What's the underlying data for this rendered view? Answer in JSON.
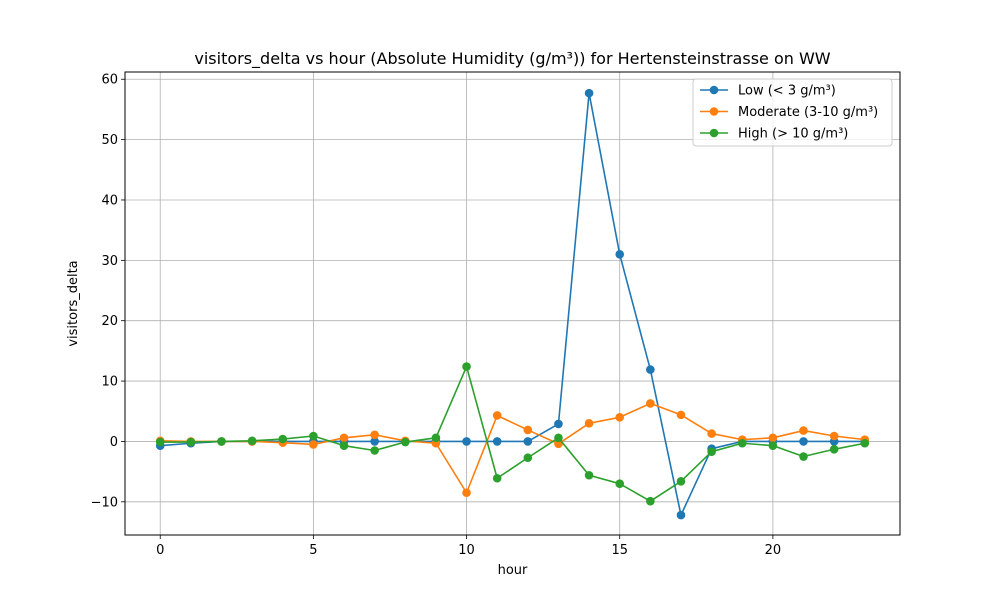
{
  "chart_data": {
    "type": "line",
    "title": "visitors_delta vs hour (Absolute Humidity (g/m³)) for Hertensteinstrasse on WW",
    "xlabel": "hour",
    "ylabel": "visitors_delta",
    "xlim": [
      -1.15,
      24.15
    ],
    "ylim": [
      -15.5,
      61.2
    ],
    "xticks": [
      0,
      5,
      10,
      15,
      20
    ],
    "yticks": [
      -10,
      0,
      10,
      20,
      30,
      40,
      50,
      60
    ],
    "grid": true,
    "legend_position": "top-right",
    "x": [
      0,
      1,
      2,
      3,
      4,
      5,
      6,
      7,
      8,
      9,
      10,
      11,
      12,
      13,
      14,
      15,
      16,
      17,
      18,
      19,
      20,
      21,
      22,
      23
    ],
    "series": [
      {
        "name": "Low (< 3 g/m³)",
        "color": "#1f77b4",
        "values": [
          -0.7,
          -0.3,
          0,
          0,
          0,
          0,
          0,
          0,
          0,
          0,
          0,
          0,
          0,
          2.9,
          57.7,
          31.0,
          11.9,
          -12.2,
          -1.2,
          0,
          0,
          0,
          0,
          0
        ]
      },
      {
        "name": "Moderate (3-10 g/m³)",
        "color": "#ff7f0e",
        "values": [
          0.1,
          0,
          0,
          0,
          -0.2,
          -0.5,
          0.6,
          1.1,
          0.1,
          -0.3,
          -8.5,
          4.3,
          1.9,
          -0.4,
          3.0,
          4.0,
          6.3,
          4.4,
          1.3,
          0.3,
          0.6,
          1.8,
          0.9,
          0.3
        ]
      },
      {
        "name": "High (> 10 g/m³)",
        "color": "#2ca02c",
        "values": [
          -0.1,
          -0.1,
          0,
          0.1,
          0.4,
          0.9,
          -0.7,
          -1.5,
          -0.1,
          0.6,
          12.4,
          -6.1,
          -2.7,
          0.6,
          -5.6,
          -7.0,
          -9.9,
          -6.6,
          -1.7,
          -0.3,
          -0.7,
          -2.5,
          -1.3,
          -0.3
        ]
      }
    ]
  }
}
